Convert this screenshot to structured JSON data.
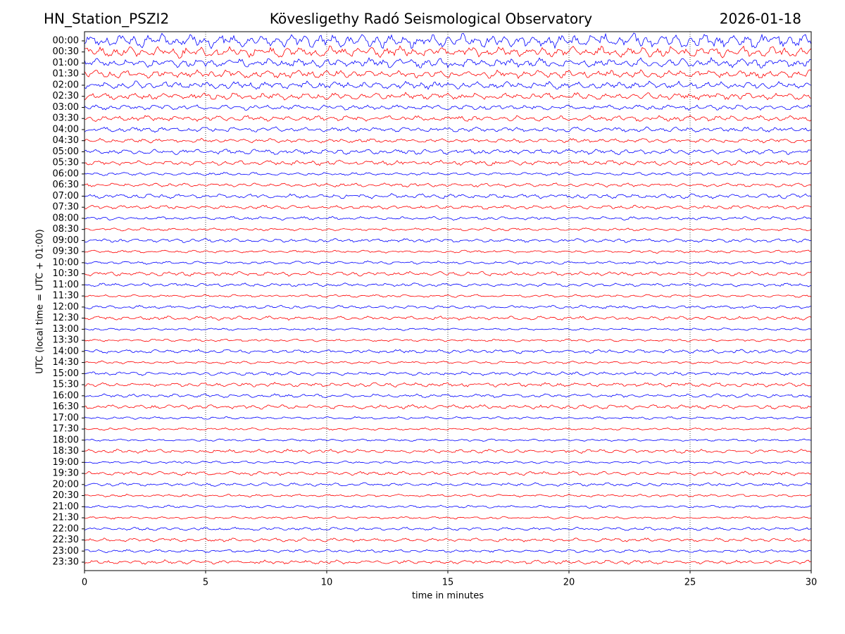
{
  "chart_data": {
    "type": "seismogram",
    "station": "HN_Station_PSZI2",
    "title": "Kövesligethy Radó Seismological Observatory",
    "date": "2026-01-18",
    "xlabel": "time in minutes",
    "ylabel": "UTC (local time = UTC + 01:00)",
    "categories": [
      "00:00",
      "00:30",
      "01:00",
      "01:30",
      "02:00",
      "02:30",
      "03:00",
      "03:30",
      "04:00",
      "04:30",
      "05:00",
      "05:30",
      "06:00",
      "06:30",
      "07:00",
      "07:30",
      "08:00",
      "08:30",
      "09:00",
      "09:30",
      "10:00",
      "10:30",
      "11:00",
      "11:30",
      "12:00",
      "12:30",
      "13:00",
      "13:30",
      "14:00",
      "14:30",
      "15:00",
      "15:30",
      "16:00",
      "16:30",
      "17:00",
      "17:30",
      "18:00",
      "18:30",
      "19:00",
      "19:30",
      "20:00",
      "20:30",
      "21:00",
      "21:30",
      "22:00",
      "22:30",
      "23:00",
      "23:30"
    ],
    "xlim": [
      0,
      30
    ],
    "xticks": [
      0,
      5,
      10,
      15,
      20,
      25,
      30
    ],
    "colors": [
      "#0000ff",
      "#ff0000"
    ],
    "grid": true
  }
}
